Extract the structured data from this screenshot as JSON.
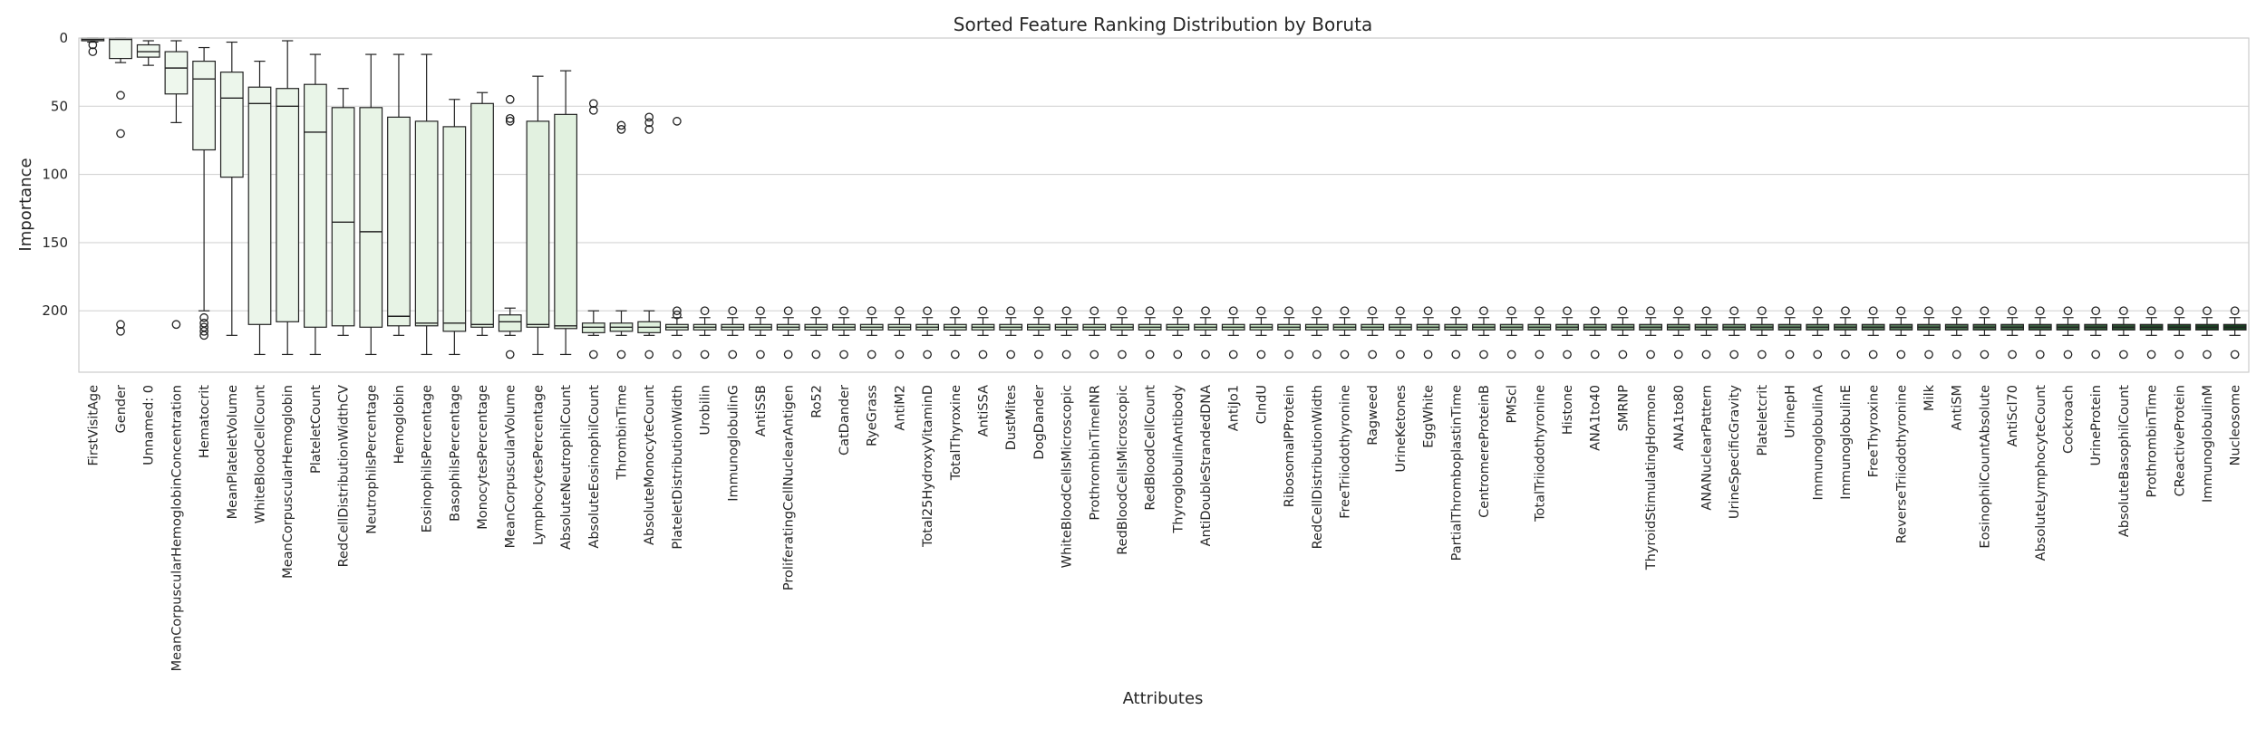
{
  "chart_data": {
    "type": "box",
    "title": "Sorted Feature Ranking Distribution by Boruta",
    "xlabel": "Attributes",
    "ylabel": "Importance",
    "ylim": [
      0,
      245
    ],
    "y_inverted": true,
    "yticks": [
      0,
      50,
      100,
      150,
      200
    ],
    "grid": "horizontal",
    "palette": {
      "light": "#f1f8f0",
      "mid": "#c9e6c5",
      "dark": "#17401f",
      "edge": "#222222"
    },
    "categories": [
      "FirstVisitAge",
      "Gender",
      "Unnamed: 0",
      "MeanCorpuscularHemoglobinConcentration",
      "Hematocrit",
      "MeanPlateletVolume",
      "WhiteBloodCellCount",
      "MeanCorpuscularHemoglobin",
      "PlateletCount",
      "RedCellDistributionWidthCV",
      "NeutrophilsPercentage",
      "Hemoglobin",
      "EosinophilsPercentage",
      "BasophilsPercentage",
      "MonocytesPercentage",
      "MeanCorpuscularVolume",
      "LymphocytesPercentage",
      "AbsoluteNeutrophilCount",
      "AbsoluteEosinophilCount",
      "ThrombinTime",
      "AbsoluteMonocyteCount",
      "PlateletDistributionWidth",
      "Urobilin",
      "ImmunoglobulinG",
      "AntiSSB",
      "ProliferatingCellNuclearAntigen",
      "Ro52",
      "CatDander",
      "RyeGrass",
      "AntiM2",
      "Total25HydroxyVitaminD",
      "TotalThyroxine",
      "AntiSSA",
      "DustMites",
      "DogDander",
      "WhiteBloodCellsMicroscopic",
      "ProthrombinTimeINR",
      "RedBloodCellsMicroscopic",
      "RedBloodCellCount",
      "ThyroglobulinAntibody",
      "AntiDoubleStrandedDNA",
      "AntiJo1",
      "CIndU",
      "RibosomalPProtein",
      "RedCellDistributionWidth",
      "FreeTriiodothyronine",
      "Ragweed",
      "UrineKetones",
      "EggWhite",
      "PartialThromboplastinTime",
      "CentromereProteinB",
      "PMScl",
      "TotalTriiodothyronine",
      "Histone",
      "ANA1to40",
      "SMRNP",
      "ThyroidStimulatingHormone",
      "ANA1to80",
      "ANANuclearPattern",
      "UrineSpecificGravity",
      "Plateletcrit",
      "UrinepH",
      "ImmunoglobulinA",
      "ImmunoglobulinE",
      "FreeThyroxine",
      "ReverseTriiodothyronine",
      "Milk",
      "AntiSM",
      "EosinophilCountAbsolute",
      "AntiScl70",
      "AbsoluteLymphocyteCount",
      "Cockroach",
      "UrineProtein",
      "AbsoluteBasophilCount",
      "ProthrombinTime",
      "CReactiveProtein",
      "ImmunoglobulinM",
      "Nucleosome"
    ],
    "boxes": [
      {
        "q1": 0,
        "median": 1,
        "q3": 2,
        "whislo": 0,
        "whishi": 3,
        "fliers": [
          5,
          10
        ]
      },
      {
        "q1": 0,
        "median": 1,
        "q3": 15,
        "whislo": 0,
        "whishi": 18,
        "fliers": [
          42,
          70,
          210,
          215
        ]
      },
      {
        "q1": 5,
        "median": 10,
        "q3": 14,
        "whislo": 2,
        "whishi": 20,
        "fliers": []
      },
      {
        "q1": 10,
        "median": 22,
        "q3": 41,
        "whislo": 2,
        "whishi": 62,
        "fliers": [
          210
        ]
      },
      {
        "q1": 17,
        "median": 30,
        "q3": 82,
        "whislo": 7,
        "whishi": 200,
        "fliers": [
          205,
          209,
          212,
          215,
          218
        ]
      },
      {
        "q1": 25,
        "median": 44,
        "q3": 102,
        "whislo": 3,
        "whishi": 218,
        "fliers": []
      },
      {
        "q1": 36,
        "median": 48,
        "q3": 210,
        "whislo": 17,
        "whishi": 232,
        "fliers": []
      },
      {
        "q1": 37,
        "median": 50,
        "q3": 208,
        "whislo": 2,
        "whishi": 232,
        "fliers": []
      },
      {
        "q1": 34,
        "median": 69,
        "q3": 212,
        "whislo": 12,
        "whishi": 232,
        "fliers": []
      },
      {
        "q1": 51,
        "median": 135,
        "q3": 211,
        "whislo": 37,
        "whishi": 218,
        "fliers": []
      },
      {
        "q1": 51,
        "median": 142,
        "q3": 212,
        "whislo": 12,
        "whishi": 232,
        "fliers": []
      },
      {
        "q1": 58,
        "median": 204,
        "q3": 211,
        "whislo": 12,
        "whishi": 218,
        "fliers": []
      },
      {
        "q1": 61,
        "median": 209,
        "q3": 211,
        "whislo": 12,
        "whishi": 232,
        "fliers": []
      },
      {
        "q1": 65,
        "median": 209,
        "q3": 215,
        "whislo": 45,
        "whishi": 232,
        "fliers": []
      },
      {
        "q1": 48,
        "median": 210,
        "q3": 212,
        "whislo": 40,
        "whishi": 218,
        "fliers": []
      },
      {
        "q1": 203,
        "median": 208,
        "q3": 215,
        "whislo": 198,
        "whishi": 218,
        "fliers": [
          45,
          59,
          61,
          232
        ]
      },
      {
        "q1": 61,
        "median": 210,
        "q3": 212,
        "whislo": 28,
        "whishi": 232,
        "fliers": []
      },
      {
        "q1": 56,
        "median": 211,
        "q3": 213,
        "whislo": 24,
        "whishi": 232,
        "fliers": []
      },
      {
        "q1": 209,
        "median": 212,
        "q3": 216,
        "whislo": 200,
        "whishi": 218,
        "fliers": [
          48,
          53,
          232
        ]
      },
      {
        "q1": 209,
        "median": 212,
        "q3": 215,
        "whislo": 200,
        "whishi": 218,
        "fliers": [
          64,
          67,
          232
        ]
      },
      {
        "q1": 208,
        "median": 212,
        "q3": 216,
        "whislo": 200,
        "whishi": 218,
        "fliers": [
          58,
          62,
          67,
          232
        ]
      },
      {
        "q1": 210,
        "median": 212,
        "q3": 214,
        "whislo": 205,
        "whishi": 218,
        "fliers": [
          61,
          200,
          203,
          232
        ]
      },
      {
        "q1": 210,
        "median": 212,
        "q3": 214,
        "whislo": 205,
        "whishi": 218,
        "fliers": [
          200,
          232
        ]
      },
      {
        "q1": 210,
        "median": 212,
        "q3": 214,
        "whislo": 205,
        "whishi": 218,
        "fliers": [
          200,
          232
        ]
      },
      {
        "q1": 210,
        "median": 212,
        "q3": 214,
        "whislo": 205,
        "whishi": 218,
        "fliers": [
          200,
          232
        ]
      },
      {
        "q1": 210,
        "median": 212,
        "q3": 214,
        "whislo": 205,
        "whishi": 218,
        "fliers": [
          200,
          232
        ]
      },
      {
        "q1": 210,
        "median": 212,
        "q3": 214,
        "whislo": 205,
        "whishi": 218,
        "fliers": [
          200,
          232
        ]
      },
      {
        "q1": 210,
        "median": 212,
        "q3": 214,
        "whislo": 205,
        "whishi": 218,
        "fliers": [
          200,
          232
        ]
      },
      {
        "q1": 210,
        "median": 212,
        "q3": 214,
        "whislo": 205,
        "whishi": 218,
        "fliers": [
          200,
          232
        ]
      },
      {
        "q1": 210,
        "median": 212,
        "q3": 214,
        "whislo": 205,
        "whishi": 218,
        "fliers": [
          200,
          232
        ]
      },
      {
        "q1": 210,
        "median": 212,
        "q3": 214,
        "whislo": 205,
        "whishi": 218,
        "fliers": [
          200,
          232
        ]
      },
      {
        "q1": 210,
        "median": 212,
        "q3": 214,
        "whislo": 205,
        "whishi": 218,
        "fliers": [
          200,
          232
        ]
      },
      {
        "q1": 210,
        "median": 212,
        "q3": 214,
        "whislo": 205,
        "whishi": 218,
        "fliers": [
          200,
          232
        ]
      },
      {
        "q1": 210,
        "median": 212,
        "q3": 214,
        "whislo": 205,
        "whishi": 218,
        "fliers": [
          200,
          232
        ]
      },
      {
        "q1": 210,
        "median": 212,
        "q3": 214,
        "whislo": 205,
        "whishi": 218,
        "fliers": [
          200,
          232
        ]
      },
      {
        "q1": 210,
        "median": 212,
        "q3": 214,
        "whislo": 205,
        "whishi": 218,
        "fliers": [
          200,
          232
        ]
      },
      {
        "q1": 210,
        "median": 212,
        "q3": 214,
        "whislo": 205,
        "whishi": 218,
        "fliers": [
          200,
          232
        ]
      },
      {
        "q1": 210,
        "median": 212,
        "q3": 214,
        "whislo": 205,
        "whishi": 218,
        "fliers": [
          200,
          232
        ]
      },
      {
        "q1": 210,
        "median": 212,
        "q3": 214,
        "whislo": 205,
        "whishi": 218,
        "fliers": [
          200,
          232
        ]
      },
      {
        "q1": 210,
        "median": 212,
        "q3": 214,
        "whislo": 205,
        "whishi": 218,
        "fliers": [
          200,
          232
        ]
      },
      {
        "q1": 210,
        "median": 212,
        "q3": 214,
        "whislo": 205,
        "whishi": 218,
        "fliers": [
          200,
          232
        ]
      },
      {
        "q1": 210,
        "median": 212,
        "q3": 214,
        "whislo": 205,
        "whishi": 218,
        "fliers": [
          200,
          232
        ]
      },
      {
        "q1": 210,
        "median": 212,
        "q3": 214,
        "whislo": 205,
        "whishi": 218,
        "fliers": [
          200,
          232
        ]
      },
      {
        "q1": 210,
        "median": 212,
        "q3": 214,
        "whislo": 205,
        "whishi": 218,
        "fliers": [
          200,
          232
        ]
      },
      {
        "q1": 210,
        "median": 212,
        "q3": 214,
        "whislo": 205,
        "whishi": 218,
        "fliers": [
          200,
          232
        ]
      },
      {
        "q1": 210,
        "median": 212,
        "q3": 214,
        "whislo": 205,
        "whishi": 218,
        "fliers": [
          200,
          232
        ]
      },
      {
        "q1": 210,
        "median": 212,
        "q3": 214,
        "whislo": 205,
        "whishi": 218,
        "fliers": [
          200,
          232
        ]
      },
      {
        "q1": 210,
        "median": 212,
        "q3": 214,
        "whislo": 205,
        "whishi": 218,
        "fliers": [
          200,
          232
        ]
      },
      {
        "q1": 210,
        "median": 212,
        "q3": 214,
        "whislo": 205,
        "whishi": 218,
        "fliers": [
          200,
          232
        ]
      },
      {
        "q1": 210,
        "median": 212,
        "q3": 214,
        "whislo": 205,
        "whishi": 218,
        "fliers": [
          200,
          232
        ]
      },
      {
        "q1": 210,
        "median": 212,
        "q3": 214,
        "whislo": 205,
        "whishi": 218,
        "fliers": [
          200,
          232
        ]
      },
      {
        "q1": 210,
        "median": 212,
        "q3": 214,
        "whislo": 205,
        "whishi": 218,
        "fliers": [
          200,
          232
        ]
      },
      {
        "q1": 210,
        "median": 212,
        "q3": 214,
        "whislo": 205,
        "whishi": 218,
        "fliers": [
          200,
          232
        ]
      },
      {
        "q1": 210,
        "median": 212,
        "q3": 214,
        "whislo": 205,
        "whishi": 218,
        "fliers": [
          200,
          232
        ]
      },
      {
        "q1": 210,
        "median": 212,
        "q3": 214,
        "whislo": 205,
        "whishi": 218,
        "fliers": [
          200,
          232
        ]
      },
      {
        "q1": 210,
        "median": 212,
        "q3": 214,
        "whislo": 205,
        "whishi": 218,
        "fliers": [
          200,
          232
        ]
      },
      {
        "q1": 210,
        "median": 212,
        "q3": 214,
        "whislo": 205,
        "whishi": 218,
        "fliers": [
          200,
          232
        ]
      },
      {
        "q1": 210,
        "median": 212,
        "q3": 214,
        "whislo": 205,
        "whishi": 218,
        "fliers": [
          200,
          232
        ]
      },
      {
        "q1": 210,
        "median": 212,
        "q3": 214,
        "whislo": 205,
        "whishi": 218,
        "fliers": [
          200,
          232
        ]
      },
      {
        "q1": 210,
        "median": 212,
        "q3": 214,
        "whislo": 205,
        "whishi": 218,
        "fliers": [
          200,
          232
        ]
      },
      {
        "q1": 210,
        "median": 212,
        "q3": 214,
        "whislo": 205,
        "whishi": 218,
        "fliers": [
          200,
          232
        ]
      },
      {
        "q1": 210,
        "median": 212,
        "q3": 214,
        "whislo": 205,
        "whishi": 218,
        "fliers": [
          200,
          232
        ]
      },
      {
        "q1": 210,
        "median": 212,
        "q3": 214,
        "whislo": 205,
        "whishi": 218,
        "fliers": [
          200,
          232
        ]
      },
      {
        "q1": 210,
        "median": 212,
        "q3": 214,
        "whislo": 205,
        "whishi": 218,
        "fliers": [
          200,
          232
        ]
      },
      {
        "q1": 210,
        "median": 212,
        "q3": 214,
        "whislo": 205,
        "whishi": 218,
        "fliers": [
          200,
          232
        ]
      },
      {
        "q1": 210,
        "median": 212,
        "q3": 214,
        "whislo": 205,
        "whishi": 218,
        "fliers": [
          200,
          232
        ]
      },
      {
        "q1": 210,
        "median": 212,
        "q3": 214,
        "whislo": 205,
        "whishi": 218,
        "fliers": [
          200,
          232
        ]
      },
      {
        "q1": 210,
        "median": 212,
        "q3": 214,
        "whislo": 205,
        "whishi": 218,
        "fliers": [
          200,
          232
        ]
      },
      {
        "q1": 210,
        "median": 212,
        "q3": 214,
        "whislo": 205,
        "whishi": 218,
        "fliers": [
          200,
          232
        ]
      },
      {
        "q1": 210,
        "median": 212,
        "q3": 214,
        "whislo": 205,
        "whishi": 218,
        "fliers": [
          200,
          232
        ]
      },
      {
        "q1": 210,
        "median": 212,
        "q3": 214,
        "whislo": 205,
        "whishi": 218,
        "fliers": [
          200,
          232
        ]
      },
      {
        "q1": 210,
        "median": 212,
        "q3": 214,
        "whislo": 205,
        "whishi": 218,
        "fliers": [
          200,
          232
        ]
      },
      {
        "q1": 210,
        "median": 212,
        "q3": 214,
        "whislo": 205,
        "whishi": 218,
        "fliers": [
          200,
          232
        ]
      },
      {
        "q1": 210,
        "median": 212,
        "q3": 214,
        "whislo": 205,
        "whishi": 218,
        "fliers": [
          200,
          232
        ]
      },
      {
        "q1": 210,
        "median": 212,
        "q3": 214,
        "whislo": 205,
        "whishi": 218,
        "fliers": [
          200,
          232
        ]
      },
      {
        "q1": 210,
        "median": 212,
        "q3": 214,
        "whislo": 205,
        "whishi": 218,
        "fliers": [
          200,
          232
        ]
      },
      {
        "q1": 210,
        "median": 212,
        "q3": 214,
        "whislo": 205,
        "whishi": 218,
        "fliers": [
          200,
          232
        ]
      },
      {
        "q1": 210,
        "median": 212,
        "q3": 214,
        "whislo": 205,
        "whishi": 218,
        "fliers": [
          200,
          232
        ]
      }
    ]
  }
}
